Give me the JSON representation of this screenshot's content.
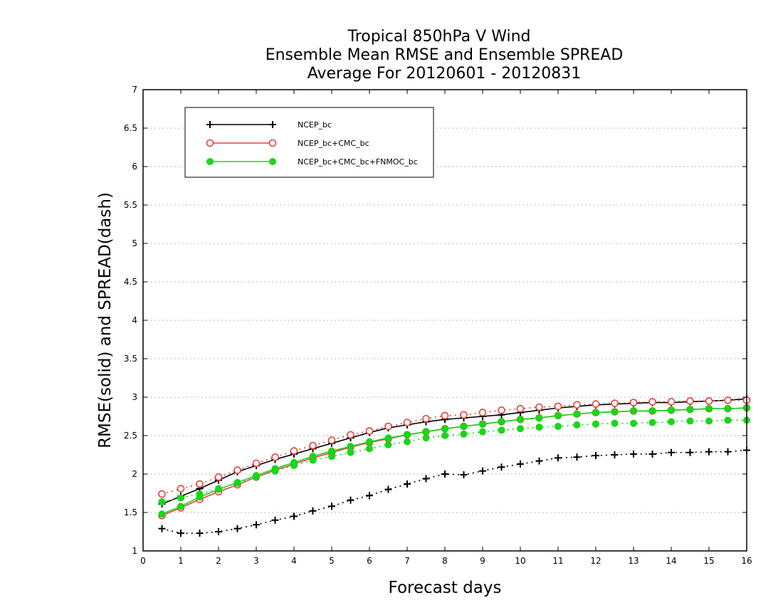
{
  "chart_data": {
    "type": "line",
    "title_lines": [
      "Tropical 850hPa V Wind",
      "Ensemble Mean RMSE and Ensemble SPREAD",
      "Average For 20120601 - 20120831"
    ],
    "xlabel": "Forecast days",
    "ylabel": "RMSE(solid) and SPREAD(dash)",
    "xlim": [
      0,
      16
    ],
    "ylim": [
      1,
      7
    ],
    "x_ticks": [
      0,
      1,
      2,
      3,
      4,
      5,
      6,
      7,
      8,
      9,
      10,
      11,
      12,
      13,
      14,
      15,
      16
    ],
    "y_ticks": [
      1,
      1.5,
      2,
      2.5,
      3,
      3.5,
      4,
      4.5,
      5,
      5.5,
      6,
      6.5,
      7
    ],
    "grid": "horizontal dotted",
    "legend_position": "top-left",
    "x": [
      0.5,
      1,
      1.5,
      2,
      2.5,
      3,
      3.5,
      4,
      4.5,
      5,
      5.5,
      6,
      6.5,
      7,
      7.5,
      8,
      8.5,
      9,
      9.5,
      10,
      10.5,
      11,
      11.5,
      12,
      12.5,
      13,
      13.5,
      14,
      14.5,
      15,
      15.5,
      16
    ],
    "series": [
      {
        "name": "NCEP_bc",
        "color": "#000000",
        "marker": "plus",
        "rmse": [
          1.61,
          1.71,
          1.81,
          1.92,
          2.03,
          2.11,
          2.19,
          2.26,
          2.33,
          2.4,
          2.47,
          2.54,
          2.6,
          2.64,
          2.68,
          2.71,
          2.73,
          2.75,
          2.77,
          2.8,
          2.83,
          2.86,
          2.88,
          2.9,
          2.91,
          2.92,
          2.93,
          2.93,
          2.94,
          2.95,
          2.96,
          2.98
        ],
        "spread": [
          1.29,
          1.23,
          1.23,
          1.25,
          1.29,
          1.34,
          1.4,
          1.45,
          1.52,
          1.58,
          1.66,
          1.72,
          1.8,
          1.87,
          1.94,
          2.0,
          1.99,
          2.04,
          2.09,
          2.13,
          2.17,
          2.21,
          2.22,
          2.24,
          2.25,
          2.26,
          2.26,
          2.28,
          2.28,
          2.29,
          2.29,
          2.31
        ]
      },
      {
        "name": "NCEP_bc+CMC_bc",
        "color": "#e8413c",
        "marker": "open-circle",
        "rmse": [
          1.46,
          1.56,
          1.67,
          1.77,
          1.86,
          1.96,
          2.05,
          2.13,
          2.21,
          2.28,
          2.35,
          2.41,
          2.46,
          2.51,
          2.55,
          2.59,
          2.62,
          2.65,
          2.68,
          2.71,
          2.73,
          2.76,
          2.78,
          2.8,
          2.81,
          2.82,
          2.82,
          2.83,
          2.84,
          2.85,
          2.85,
          2.86
        ],
        "spread": [
          1.74,
          1.81,
          1.87,
          1.96,
          2.05,
          2.14,
          2.22,
          2.3,
          2.37,
          2.44,
          2.51,
          2.56,
          2.62,
          2.67,
          2.72,
          2.76,
          2.77,
          2.8,
          2.83,
          2.85,
          2.87,
          2.88,
          2.9,
          2.91,
          2.92,
          2.93,
          2.94,
          2.94,
          2.95,
          2.95,
          2.96,
          2.96
        ]
      },
      {
        "name": "NCEP_bc+CMC_bc+FNMOC_bc",
        "color": "#19d619",
        "marker": "filled-circle",
        "rmse": [
          1.48,
          1.58,
          1.7,
          1.8,
          1.89,
          1.98,
          2.07,
          2.15,
          2.23,
          2.3,
          2.36,
          2.42,
          2.47,
          2.51,
          2.55,
          2.59,
          2.62,
          2.65,
          2.68,
          2.71,
          2.73,
          2.76,
          2.78,
          2.8,
          2.81,
          2.82,
          2.82,
          2.83,
          2.84,
          2.85,
          2.85,
          2.86
        ],
        "spread": [
          1.64,
          1.69,
          1.74,
          1.81,
          1.88,
          1.96,
          2.04,
          2.11,
          2.18,
          2.23,
          2.28,
          2.33,
          2.38,
          2.42,
          2.47,
          2.5,
          2.52,
          2.55,
          2.57,
          2.59,
          2.61,
          2.62,
          2.64,
          2.65,
          2.66,
          2.66,
          2.67,
          2.68,
          2.69,
          2.69,
          2.7,
          2.7
        ]
      }
    ]
  }
}
